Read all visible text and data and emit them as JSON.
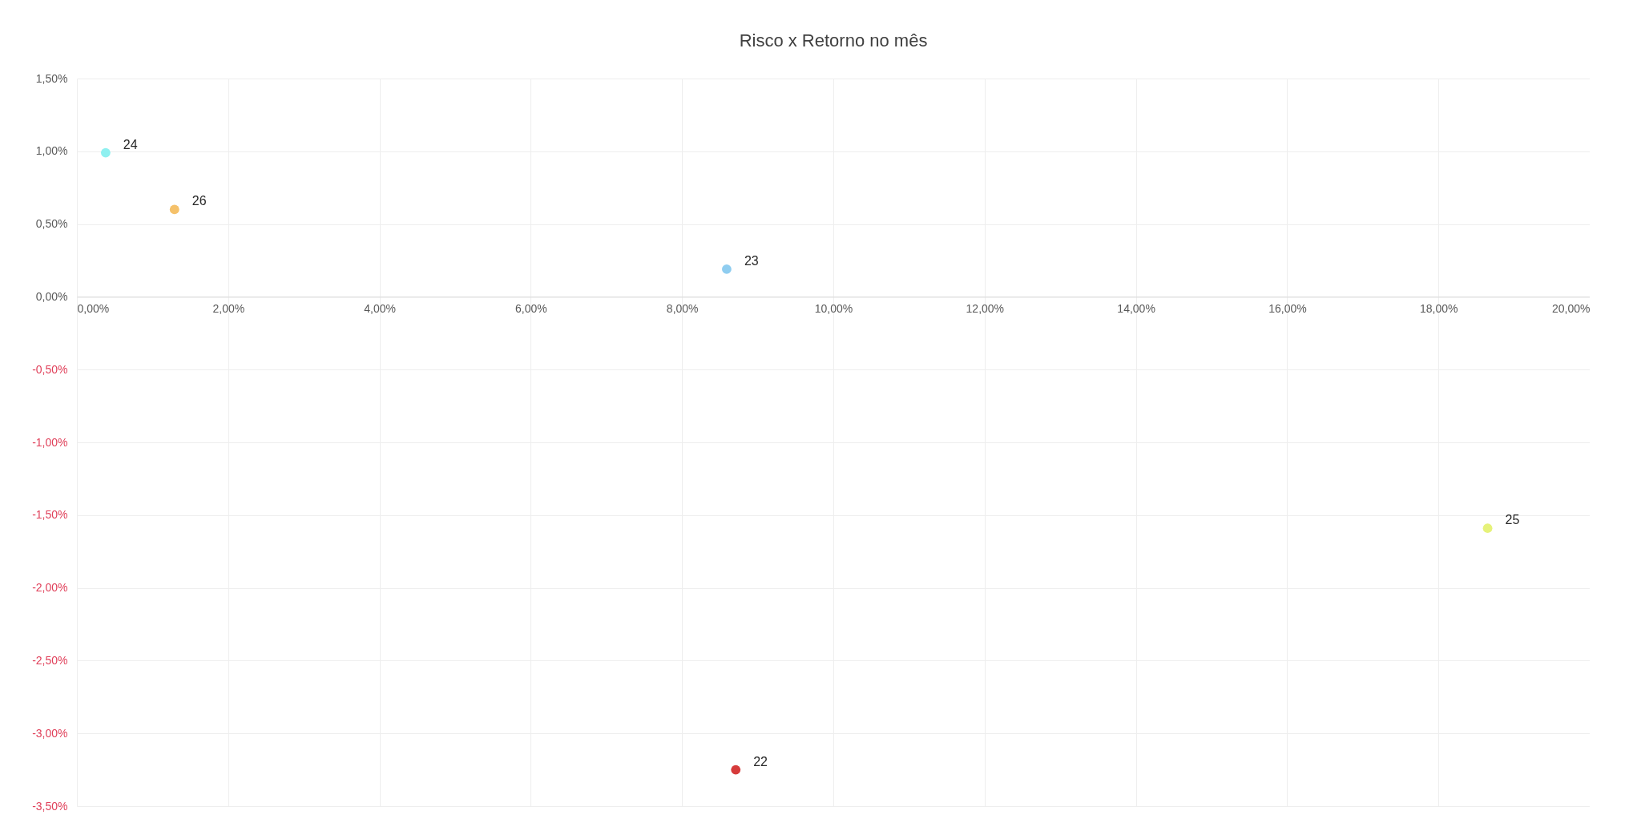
{
  "chart_data": {
    "type": "scatter",
    "title": "Risco x Retorno no mês",
    "xlim": [
      0,
      20
    ],
    "xticks": [
      {
        "value": 0,
        "label": "0,00%"
      },
      {
        "value": 2,
        "label": "2,00%"
      },
      {
        "value": 4,
        "label": "4,00%"
      },
      {
        "value": 6,
        "label": "6,00%"
      },
      {
        "value": 8,
        "label": "8,00%"
      },
      {
        "value": 10,
        "label": "10,00%"
      },
      {
        "value": 12,
        "label": "12,00%"
      },
      {
        "value": 14,
        "label": "14,00%"
      },
      {
        "value": 16,
        "label": "16,00%"
      },
      {
        "value": 18,
        "label": "18,00%"
      },
      {
        "value": 20,
        "label": "20,00%"
      }
    ],
    "ylim": [
      -3.5,
      1.5
    ],
    "yticks": [
      {
        "value": -3.5,
        "label": "-3,50%"
      },
      {
        "value": -3,
        "label": "-3,00%"
      },
      {
        "value": -2.5,
        "label": "-2,50%"
      },
      {
        "value": -2,
        "label": "-2,00%"
      },
      {
        "value": -1.5,
        "label": "-1,50%"
      },
      {
        "value": -1,
        "label": "-1,00%"
      },
      {
        "value": -0.5,
        "label": "-0,50%"
      },
      {
        "value": 0,
        "label": "0,00%"
      },
      {
        "value": 0.5,
        "label": "0,50%"
      },
      {
        "value": 1,
        "label": "1,00%"
      },
      {
        "value": 1.5,
        "label": "1,50%"
      }
    ],
    "grid": true,
    "marker": "circle",
    "legend": false,
    "series": [
      {
        "name": "22",
        "color": "#d63b3b",
        "x": [
          8.71
        ],
        "values": [
          -3.25
        ]
      },
      {
        "name": "23",
        "color": "#8fcdf0",
        "x": [
          8.59
        ],
        "values": [
          0.19
        ]
      },
      {
        "name": "24",
        "color": "#8ff0f0",
        "x": [
          0.38
        ],
        "values": [
          0.99
        ]
      },
      {
        "name": "25",
        "color": "#e6f27a",
        "x": [
          18.65
        ],
        "values": [
          -1.59
        ]
      },
      {
        "name": "26",
        "color": "#f5c16a",
        "x": [
          1.29
        ],
        "values": [
          0.6
        ]
      }
    ]
  }
}
